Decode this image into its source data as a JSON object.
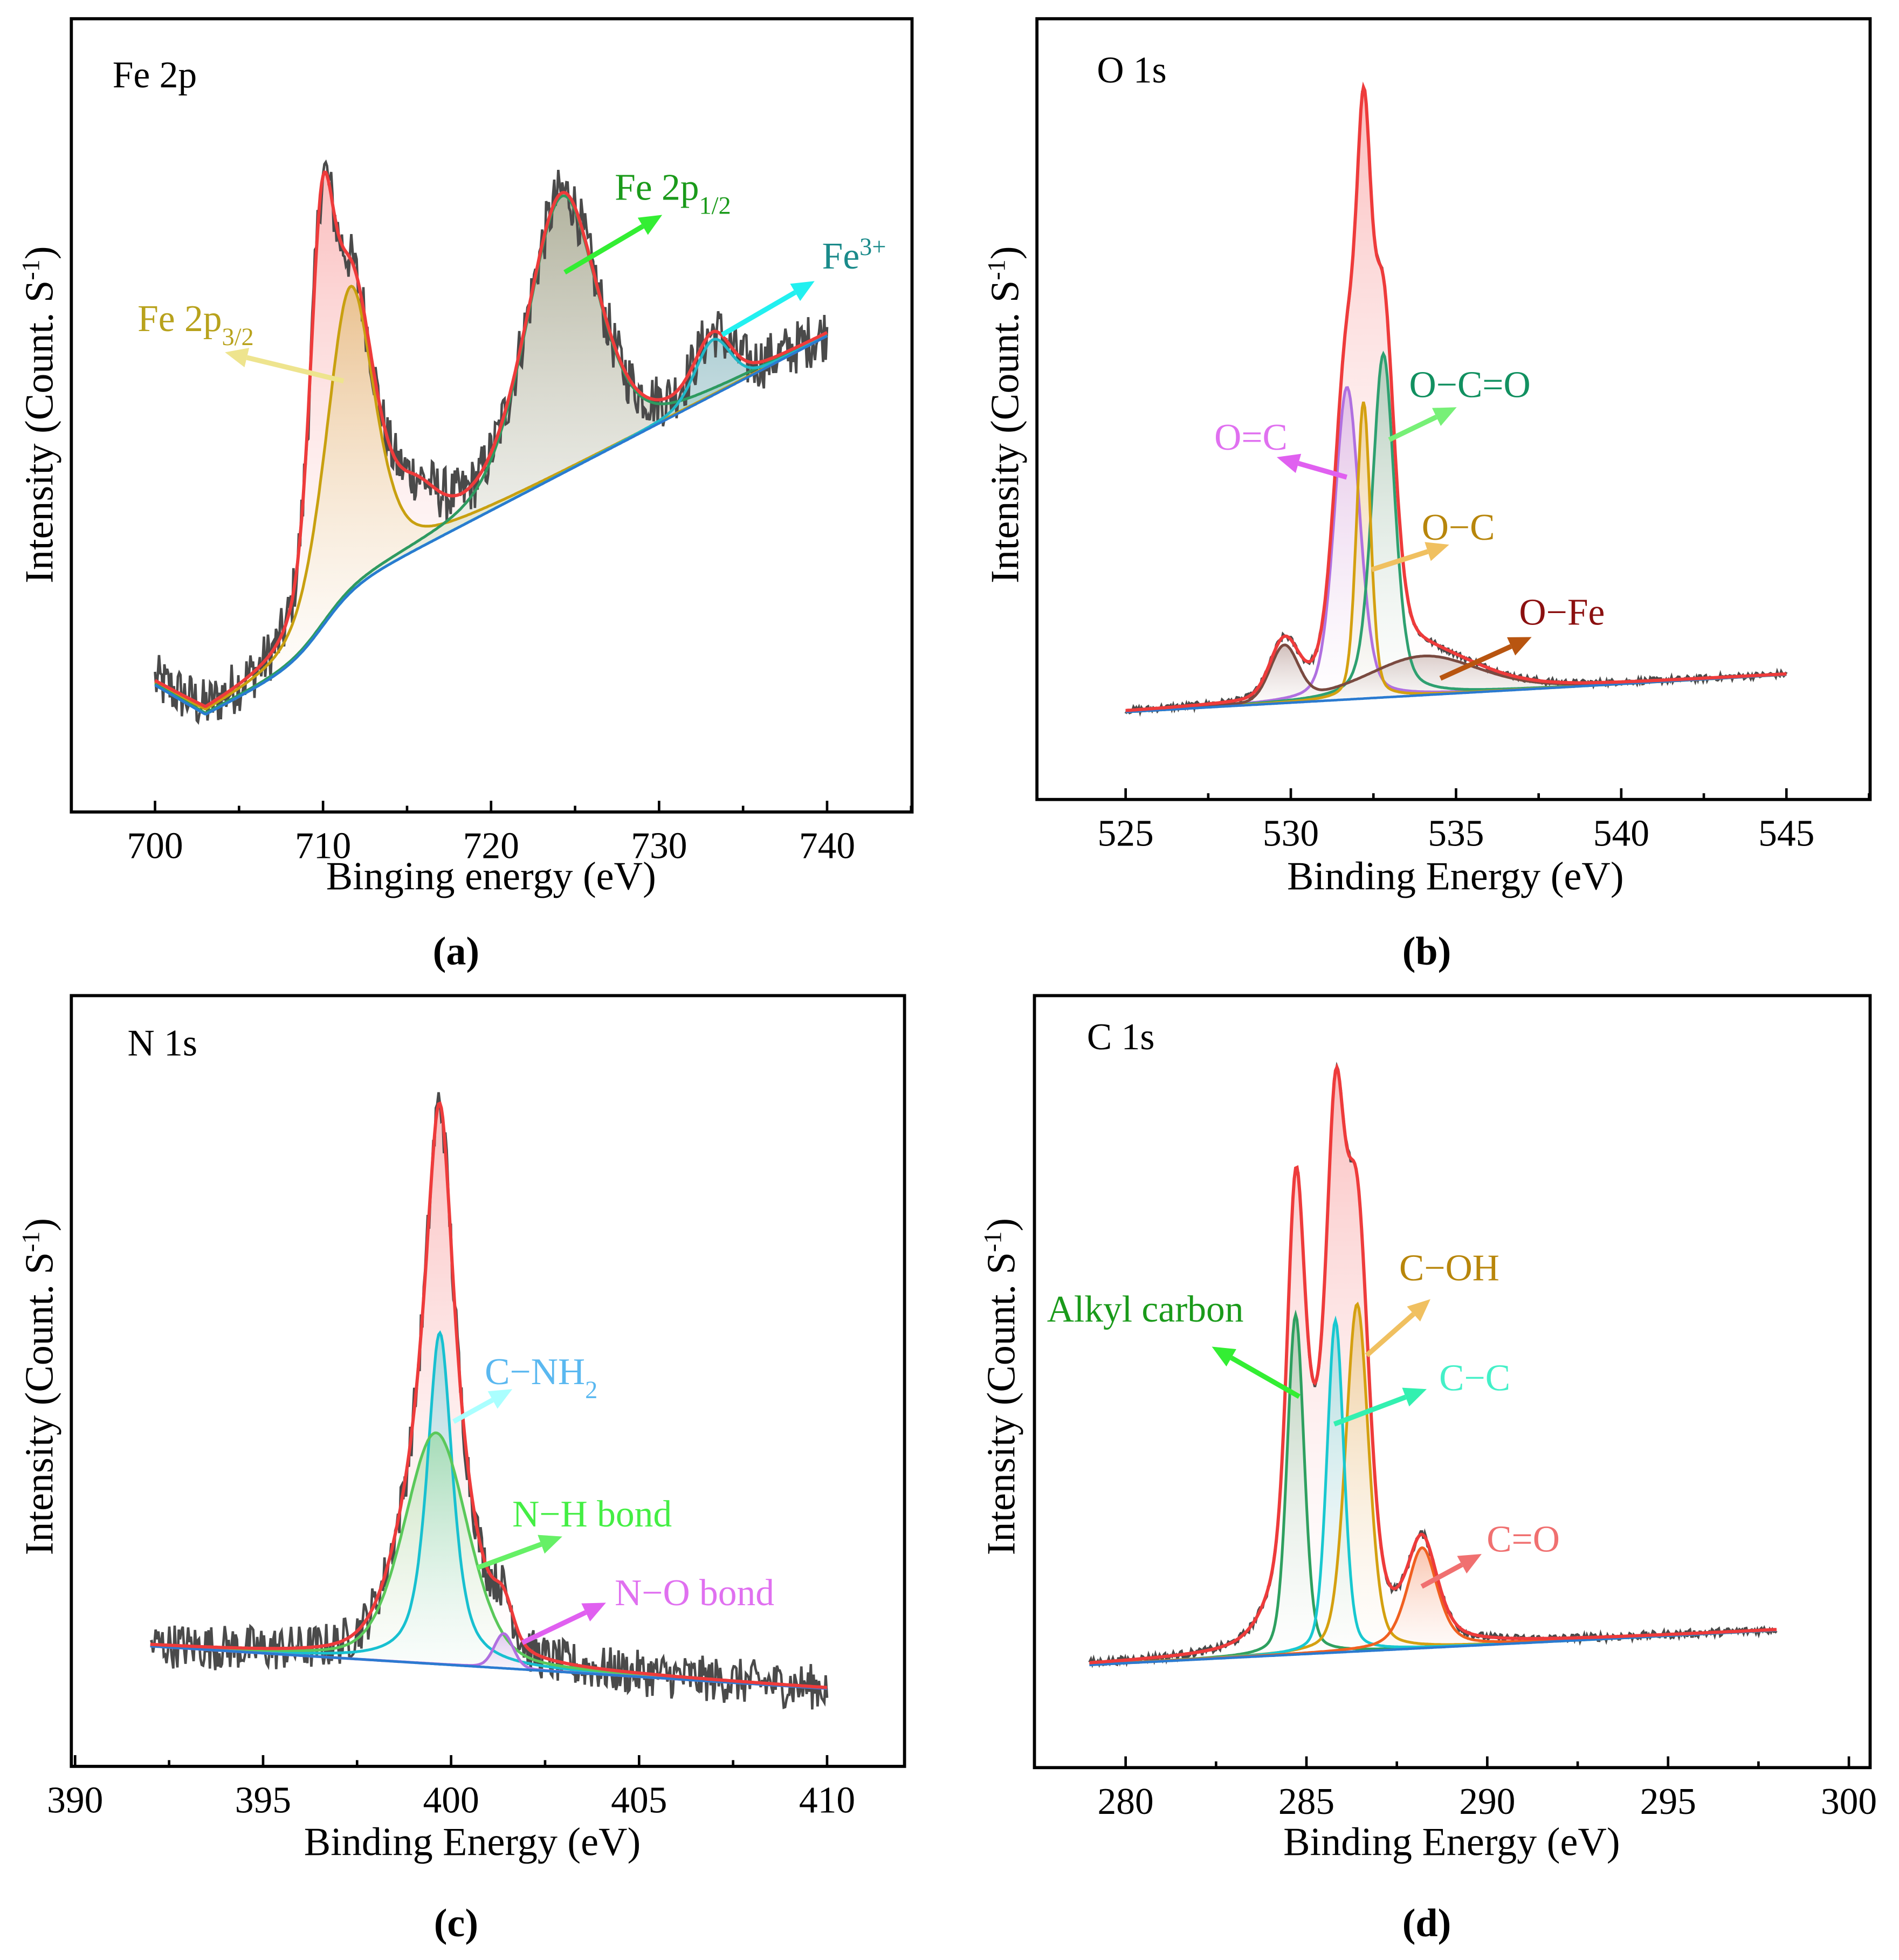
{
  "chart_data": [
    {
      "type": "line",
      "caption": "(a)",
      "title": "Fe 2p",
      "xlabel": "Binging energy (eV)",
      "ylabel": {
        "main": "Intensity (Count. S",
        "sup": "-1",
        "close": ")"
      },
      "xlim": [
        695,
        745
      ],
      "xticks": [
        700,
        710,
        720,
        730,
        740
      ],
      "xtick_labels": [
        "700",
        "710",
        "720",
        "730",
        "740"
      ],
      "ylim": [
        0,
        1
      ],
      "x_range": [
        700,
        740
      ],
      "background": {
        "points": [
          [
            700,
            0.16
          ],
          [
            740,
            0.6
          ]
        ],
        "shirley_dip": 0.07,
        "shirley_edge": 710
      },
      "raw_noise": 0.035,
      "envelope_color": "#ee3b3b",
      "envelope_extra_peaks": [
        [
          709.9,
          0.36,
          1.6,
          0.3
        ],
        [
          715.5,
          0.05,
          3,
          0.2
        ]
      ],
      "components": [
        {
          "label": {
            "text": "Fe 2p",
            "sub": "3/2"
          },
          "color": "#c8a010",
          "label_color": "#b8a21c",
          "arrow_color": "#eee48e",
          "peaks": [
            [
              711.6,
              0.386,
              3.4,
              0.45
            ]
          ]
        },
        {
          "label": {
            "text": "Fe 2p",
            "sub": "1/2"
          },
          "color": "#2e9a60",
          "label_color": "#1a9a1a",
          "arrow_color": "#33ee33",
          "peaks": [
            [
              724.2,
              0.35,
              5.0,
              0.35
            ]
          ]
        },
        {
          "label": {
            "text": "Fe",
            "sup": "3+"
          },
          "color": "#20b8c8",
          "label_color": "#1a8a8a",
          "arrow_color": "#22f0f0",
          "peaks": [
            [
              733.2,
              0.07,
              2.5,
              0.3
            ]
          ]
        }
      ]
    },
    {
      "type": "line",
      "caption": "(b)",
      "title": "O 1s",
      "xlabel": "Binding Energy (eV)",
      "ylabel": {
        "main": "Intensity (Count. S",
        "sup": "-1",
        "close": ")"
      },
      "xlim": [
        522.4,
        547.4
      ],
      "xticks": [
        525,
        530,
        535,
        540,
        545
      ],
      "xtick_labels": [
        "525",
        "530",
        "535",
        "540",
        "545"
      ],
      "ylim": [
        0,
        1
      ],
      "x_range": [
        525,
        545
      ],
      "background": {
        "points": [
          [
            525,
            0.112
          ],
          [
            545,
            0.16
          ]
        ]
      },
      "raw_noise": 0.004,
      "envelope_color": "#ee3b3b",
      "envelope_extra_peaks": [
        [
          532.3,
          0.1,
          0.6,
          0.2
        ]
      ],
      "components": [
        {
          "label": {
            "text": "O=C"
          },
          "color": "#b070e0",
          "label_color": "#e070f0",
          "arrow_color": "#e060f0",
          "peaks": [
            [
              531.7,
              0.4,
              0.9,
              0.3
            ]
          ]
        },
        {
          "label": {
            "text": "O−C=O"
          },
          "color": "#2ea070",
          "label_color": "#119060",
          "arrow_color": "#77f077",
          "peaks": [
            [
              532.8,
              0.44,
              0.8,
              0.4
            ]
          ]
        },
        {
          "label": {
            "text": "O−C"
          },
          "color": "#d4a010",
          "label_color": "#b8860b",
          "arrow_color": "#f0c060",
          "peaks": [
            [
              532.2,
              0.38,
              0.5,
              0.3
            ]
          ]
        },
        {
          "label": {
            "text": "O−Fe"
          },
          "color": "#7a4a40",
          "label_color": "#8b1010",
          "arrow_color": "#b85510",
          "peaks": [
            [
              529.8,
              0.07,
              1.0,
              0.1
            ],
            [
              534.0,
              0.05,
              4.0,
              0.3
            ]
          ]
        }
      ]
    },
    {
      "type": "line",
      "caption": "(c)",
      "title": "N 1s",
      "xlabel": "Binding Energy (eV)",
      "ylabel": {
        "main": "Intensity (Count. S",
        "sup": "-1",
        "close": ")"
      },
      "xlim": [
        390,
        412
      ],
      "xticks": [
        390,
        395,
        400,
        405,
        410
      ],
      "xtick_labels": [
        "390",
        "395",
        "400",
        "405",
        "410"
      ],
      "ylim": [
        0,
        1
      ],
      "x_range": [
        392,
        410
      ],
      "background": {
        "points": [
          [
            392,
            0.156
          ],
          [
            410,
            0.101
          ]
        ]
      },
      "raw_noise": 0.03,
      "envelope_color": "#ee3b3b",
      "envelope_extra_peaks": [],
      "components": [
        {
          "label": {
            "text": "C−NH",
            "sub": "2"
          },
          "color": "#18c0d0",
          "label_color": "#5ab8f0",
          "arrow_color": "#aaffff",
          "peaks": [
            [
              399.7,
              0.43,
              0.8,
              0.7
            ]
          ]
        },
        {
          "label": {
            "text": "N−H bond"
          },
          "color": "#5ac85a",
          "label_color": "#44ee44",
          "arrow_color": "#66f066",
          "peaks": [
            [
              399.6,
              0.3,
              2.0,
              0.3
            ]
          ]
        },
        {
          "label": {
            "text": "N−O bond"
          },
          "color": "#b070e0",
          "label_color": "#e070f0",
          "arrow_color": "#e060f0",
          "peaks": [
            [
              401.4,
              0.045,
              0.6,
              0.2
            ]
          ]
        }
      ]
    },
    {
      "type": "line",
      "caption": "(d)",
      "title": "C 1s",
      "xlabel": "Binding Energy (eV)",
      "ylabel": {
        "main": "Intensity (Count. S",
        "sup": "-1",
        "close": ")"
      },
      "xlim": [
        277.6,
        300
      ],
      "xticks": [
        280,
        285,
        290,
        295,
        300
      ],
      "xtick_labels": [
        "280",
        "285",
        "290",
        "295",
        "300"
      ],
      "ylim": [
        0,
        1
      ],
      "x_range": [
        279,
        298
      ],
      "background": {
        "points": [
          [
            279,
            0.133
          ],
          [
            298,
            0.178
          ]
        ]
      },
      "raw_noise": 0.005,
      "envelope_color": "#ee3b3b",
      "envelope_extra_peaks": [
        [
          285.4,
          0.25,
          2.0,
          0.3
        ]
      ],
      "components": [
        {
          "label": {
            "text": "Alkyl carbon"
          },
          "color": "#2ea060",
          "label_color": "#1a9a1a",
          "arrow_color": "#33ee33",
          "peaks": [
            [
              284.7,
              0.44,
              0.55,
              0.3
            ]
          ]
        },
        {
          "label": {
            "text": "C−OH"
          },
          "color": "#d4a010",
          "label_color": "#b8860b",
          "arrow_color": "#f0c060",
          "peaks": [
            [
              286.4,
              0.45,
              0.75,
              0.3
            ]
          ]
        },
        {
          "label": {
            "text": "C−C"
          },
          "color": "#18c8d0",
          "label_color": "#44f0c8",
          "arrow_color": "#33f0b0",
          "peaks": [
            [
              285.8,
              0.43,
              0.55,
              0.3
            ]
          ]
        },
        {
          "label": {
            "text": "C=O"
          },
          "color": "#f06020",
          "label_color": "#f07070",
          "arrow_color": "#f07070",
          "peaks": [
            [
              288.2,
              0.13,
              1.0,
              0.5
            ]
          ]
        }
      ]
    }
  ]
}
